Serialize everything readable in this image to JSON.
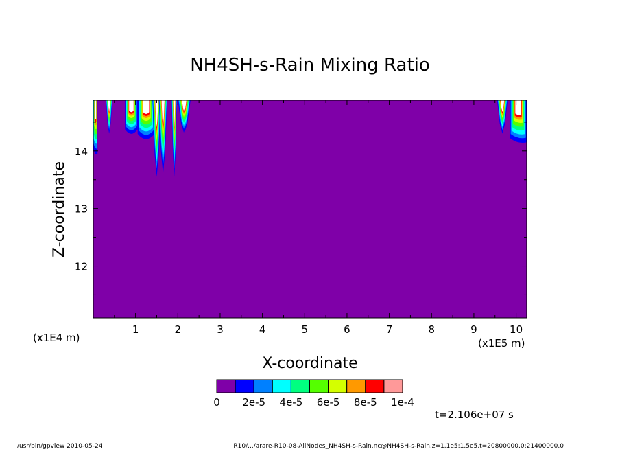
{
  "chart_data": {
    "type": "heatmap",
    "title": "NH4SH-s-Rain Mixing Ratio",
    "xlabel": "X-coordinate",
    "ylabel": "Z-coordinate",
    "x_scale_label": "(x1E5 m)",
    "y_scale_label": "(x1E4 m)",
    "xlim": [
      0,
      10.25
    ],
    "ylim": [
      11.1,
      14.88
    ],
    "x_ticks": [
      {
        "v": 1,
        "label": "1"
      },
      {
        "v": 2,
        "label": "2"
      },
      {
        "v": 3,
        "label": "3"
      },
      {
        "v": 4,
        "label": "4"
      },
      {
        "v": 5,
        "label": "5"
      },
      {
        "v": 6,
        "label": "6"
      },
      {
        "v": 7,
        "label": "7"
      },
      {
        "v": 8,
        "label": "8"
      },
      {
        "v": 9,
        "label": "9"
      },
      {
        "v": 10,
        "label": "10"
      }
    ],
    "y_ticks": [
      {
        "v": 12,
        "label": "12"
      },
      {
        "v": 13,
        "label": "13"
      },
      {
        "v": 14,
        "label": "14"
      }
    ],
    "background_level_color": "#7f00a8",
    "colorbar": {
      "colors": [
        "#7f00a8",
        "#0000ff",
        "#0080ff",
        "#00ffff",
        "#00ff80",
        "#55ff00",
        "#d4ff00",
        "#ff9900",
        "#ff0000",
        "#ff9999"
      ],
      "labels": [
        {
          "pos": 0,
          "text": "0"
        },
        {
          "pos": 2,
          "text": "2e-5"
        },
        {
          "pos": 4,
          "text": "4e-5"
        },
        {
          "pos": 6,
          "text": "6e-5"
        },
        {
          "pos": 8,
          "text": "8e-5"
        },
        {
          "pos": 10,
          "text": "1e-4"
        }
      ]
    },
    "plumes": [
      {
        "x": [
          0.0,
          0.1
        ],
        "ymin": 13.95,
        "type": "edge"
      },
      {
        "x": [
          0.3,
          0.45
        ],
        "ymin": 14.3,
        "type": "spike"
      },
      {
        "x": [
          0.75,
          1.05
        ],
        "ymin": 14.25,
        "type": "blob"
      },
      {
        "x": [
          1.05,
          1.45
        ],
        "ymin": 14.15,
        "type": "blob"
      },
      {
        "x": [
          1.4,
          1.6
        ],
        "ymin": 13.55,
        "type": "spike"
      },
      {
        "x": [
          1.55,
          1.75
        ],
        "ymin": 13.6,
        "type": "spike"
      },
      {
        "x": [
          1.85,
          1.98
        ],
        "ymin": 13.55,
        "type": "spike"
      },
      {
        "x": [
          2.0,
          2.3
        ],
        "ymin": 14.3,
        "type": "spike"
      },
      {
        "x": [
          9.55,
          9.8
        ],
        "ymin": 14.3,
        "type": "spike"
      },
      {
        "x": [
          9.85,
          10.25
        ],
        "ymin": 14.15,
        "type": "edge"
      }
    ]
  },
  "time_label": "t=2.106e+07 s",
  "footer_left": "/usr/bin/gpview   2010-05-24",
  "footer_right": "R10/.../arare-R10-08-AllNodes_NH4SH-s-Rain.nc@NH4SH-s-Rain,z=1.1e5:1.5e5,t=20800000.0:21400000.0"
}
